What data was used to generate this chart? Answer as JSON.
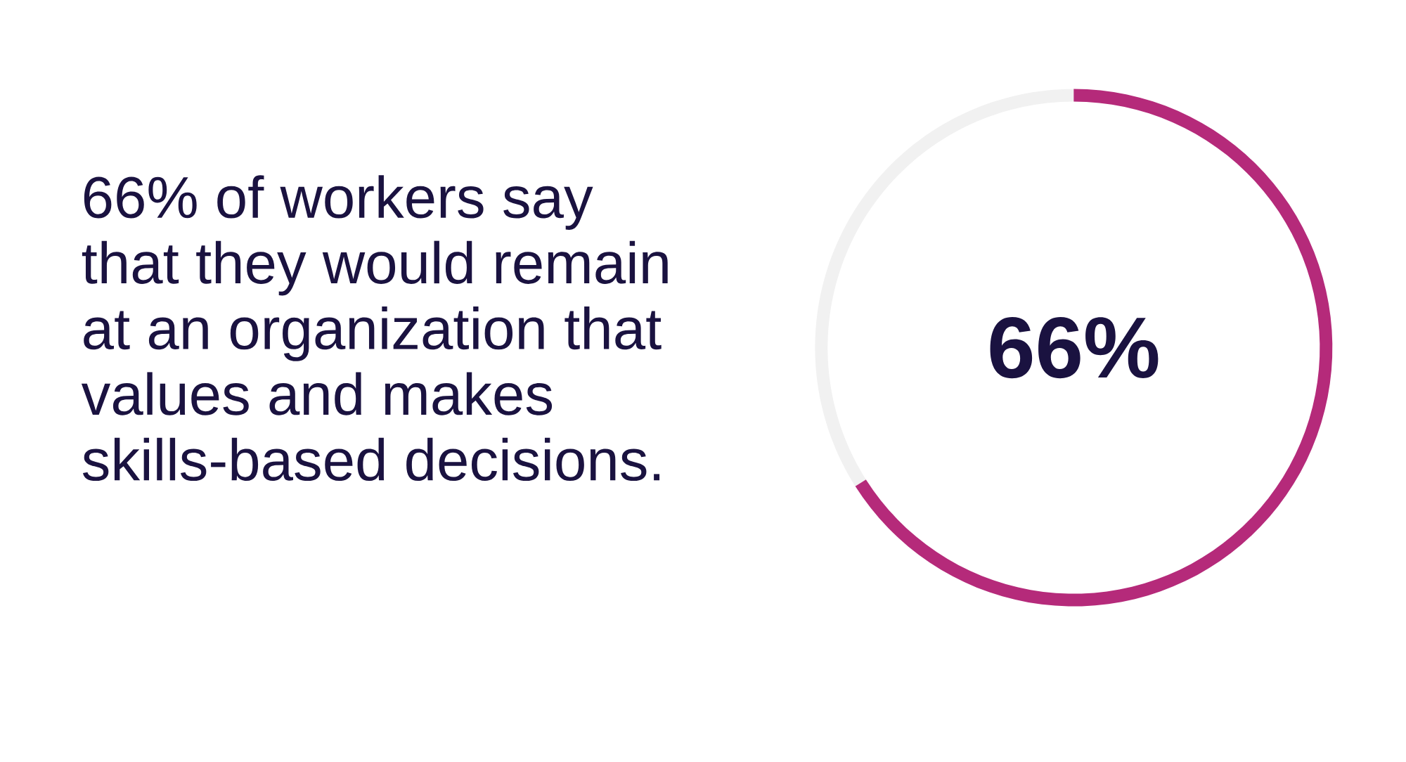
{
  "chart_data": {
    "type": "donut",
    "title": "66% of workers say that they would remain at an organization that values and makes skills-based decisions.",
    "categories": [
      null,
      null
    ],
    "values": [
      66,
      34
    ],
    "colors": [
      "#b52a7a",
      "#f1f1f1"
    ],
    "value_labels": [
      "66%",
      null
    ]
  }
}
